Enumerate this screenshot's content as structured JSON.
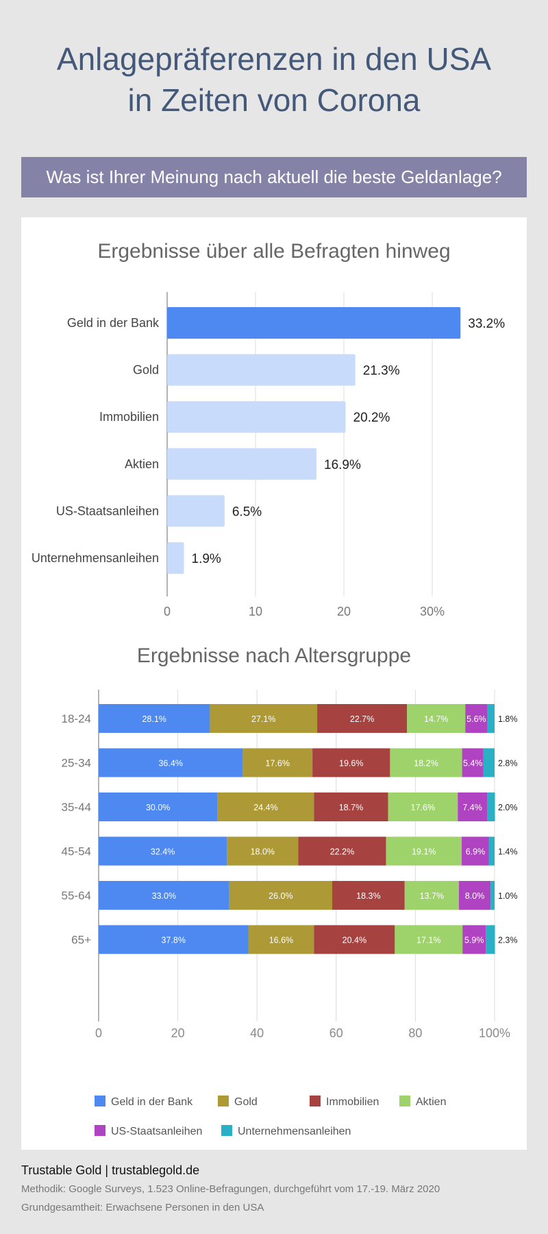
{
  "title_line1": "Anlagepräferenzen in den USA",
  "title_line2": "in Zeiten von Corona",
  "question": "Was ist Ihrer Meinung nach aktuell die beste Geldanlage?",
  "footer": {
    "brand": "Trustable Gold | trustablegold.de",
    "method": "Methodik: Google Surveys, 1.523 Online-Befragungen, durchgeführt vom 17.-19. März 2020",
    "population": "Grundgesamtheit: Erwachsene Personen in den USA"
  },
  "chart_data": [
    {
      "type": "bar",
      "orientation": "horizontal",
      "title": "Ergebnisse über alle Befragten hinweg",
      "categories": [
        "Geld in der Bank",
        "Gold",
        "Immobilien",
        "Aktien",
        "US-Staatsanleihen",
        "Unternehmensanleihen"
      ],
      "values": [
        33.2,
        21.3,
        20.2,
        16.9,
        6.5,
        1.9
      ],
      "value_labels": [
        "33.2%",
        "21.3%",
        "20.2%",
        "16.9%",
        "6.5%",
        "1.9%"
      ],
      "xticks": [
        "0",
        "10",
        "20",
        "30%"
      ],
      "xlim": [
        0,
        35
      ],
      "grid": true,
      "colors": [
        "#4d89f0",
        "#c8dbfb"
      ]
    },
    {
      "type": "bar",
      "orientation": "horizontal",
      "stacked": true,
      "title": "Ergebnisse nach Altersgruppe",
      "categories": [
        "18-24",
        "25-34",
        "35-44",
        "45-54",
        "55-64",
        "65+"
      ],
      "series": [
        {
          "name": "Geld in der Bank",
          "color": "#4d89f0",
          "values": [
            28.1,
            36.4,
            30.0,
            32.4,
            33.0,
            37.8
          ],
          "labels": [
            "28.1%",
            "36.4%",
            "30.0%",
            "32.4%",
            "33.0%",
            "37.8%"
          ]
        },
        {
          "name": "Gold",
          "color": "#ad9936",
          "values": [
            27.1,
            17.6,
            24.4,
            18.0,
            26.0,
            16.6
          ],
          "labels": [
            "27.1%",
            "17.6%",
            "24.4%",
            "18.0%",
            "26.0%",
            "16.6%"
          ]
        },
        {
          "name": "Immobilien",
          "color": "#a64340",
          "values": [
            22.7,
            19.6,
            18.7,
            22.2,
            18.3,
            20.4
          ],
          "labels": [
            "22.7%",
            "19.6%",
            "18.7%",
            "22.2%",
            "18.3%",
            "20.4%"
          ]
        },
        {
          "name": "Aktien",
          "color": "#9ed36c",
          "values": [
            14.7,
            18.2,
            17.6,
            19.1,
            13.7,
            17.1
          ],
          "labels": [
            "14.7%",
            "18.2%",
            "17.6%",
            "19.1%",
            "13.7%",
            "17.1%"
          ]
        },
        {
          "name": "US-Staatsanleihen",
          "color": "#b043c2",
          "values": [
            5.6,
            5.4,
            7.4,
            6.9,
            8.0,
            5.9
          ],
          "labels": [
            "5.6%",
            "5.4%",
            "7.4%",
            "6.9%",
            "8.0%",
            "5.9%"
          ]
        },
        {
          "name": "Unternehmensanleihen",
          "color": "#2ab0c4",
          "values": [
            1.8,
            2.8,
            2.0,
            1.4,
            1.0,
            2.3
          ],
          "labels": [
            "1.8%",
            "2.8%",
            "2.0%",
            "1.4%",
            "1.0%",
            "2.3%"
          ]
        }
      ],
      "xticks": [
        "0",
        "20",
        "40",
        "60",
        "80",
        "100%"
      ],
      "xlim": [
        0,
        100
      ],
      "grid": true,
      "legend": "bottom"
    }
  ]
}
